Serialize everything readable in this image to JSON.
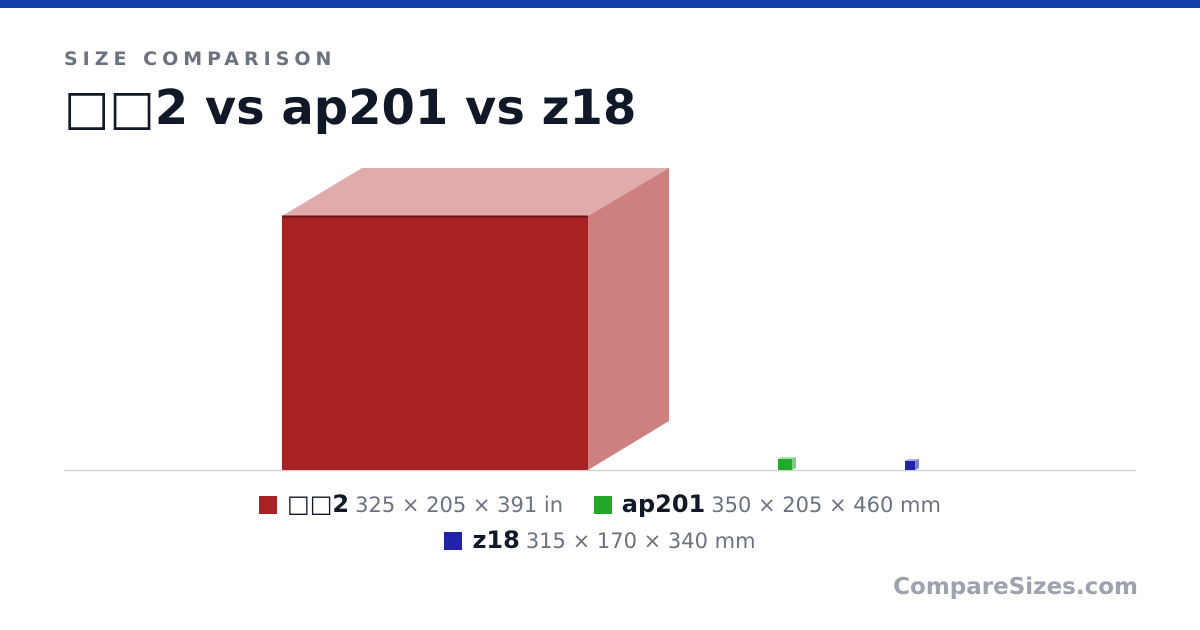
{
  "header": {
    "eyebrow": "SIZE COMPARISON",
    "title": "□□2 vs ap201 vs z18"
  },
  "items": [
    {
      "name": "□□2",
      "dims_text": "325 × 205 × 391 in",
      "width": 325,
      "depth": 205,
      "height": 391,
      "unit": "in",
      "color": "#a82224",
      "top_color": "#dfabab",
      "side_color": "#ce8080"
    },
    {
      "name": "ap201",
      "dims_text": "350 × 205 × 460 mm",
      "width": 350,
      "depth": 205,
      "height": 460,
      "unit": "mm",
      "color": "#22a82a",
      "top_color": "#a9dfab",
      "side_color": "#7ccf80"
    },
    {
      "name": "z18",
      "dims_text": "315 × 170 × 340 mm",
      "width": 315,
      "depth": 170,
      "height": 340,
      "unit": "mm",
      "color": "#2222a8",
      "top_color": "#ababdf",
      "side_color": "#8080cf"
    }
  ],
  "brand": "CompareSizes.com",
  "colors": {
    "accent_bar": "#1340a8",
    "baseline": "#d1d5db"
  }
}
